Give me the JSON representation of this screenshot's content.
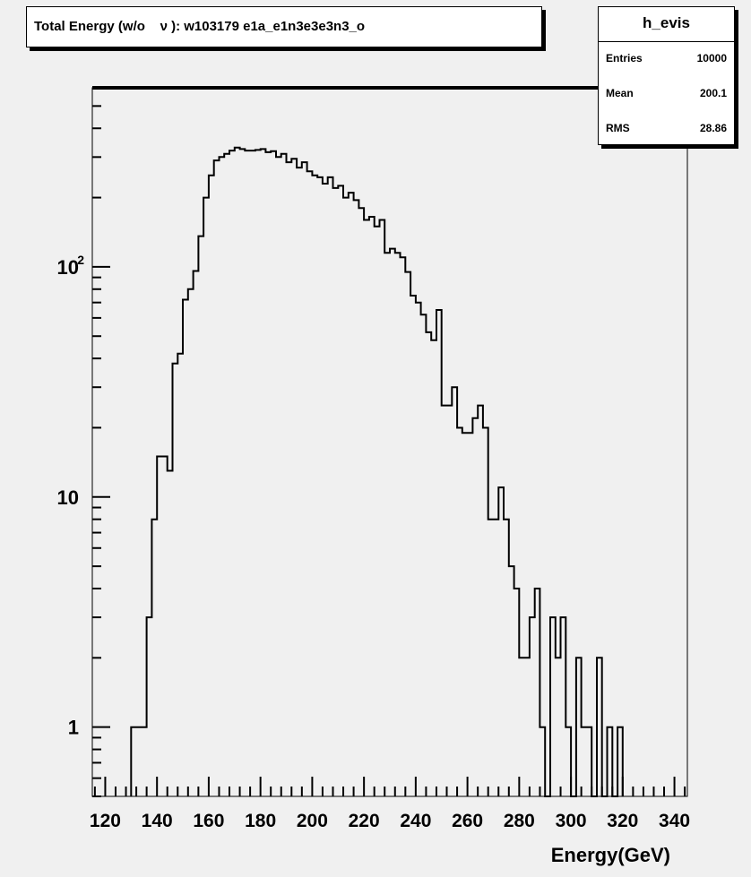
{
  "header": {
    "title": "Total Energy (w/o    ν ): w103179 e1a_e1n3e3e3n3_o"
  },
  "stats": {
    "name": "h_evis",
    "rows": [
      {
        "label": "Entries",
        "value": "10000"
      },
      {
        "label": "Mean",
        "value": "200.1"
      },
      {
        "label": "RMS",
        "value": "28.86"
      }
    ]
  },
  "chart_data": {
    "type": "bar",
    "title": "Total Energy (w/o    ν ): w103179 e1a_e1n3e3e3n3_o",
    "xlabel": "Energy(GeV)",
    "ylabel": "",
    "xlim": [
      115,
      345
    ],
    "ylim": [
      0.5,
      600
    ],
    "y_scale": "log",
    "bin_width": 2,
    "x_ticks": [
      120,
      140,
      160,
      180,
      200,
      220,
      240,
      260,
      280,
      300,
      320,
      340
    ],
    "x_tick_labels": [
      "120",
      "140",
      "160",
      "180",
      "200",
      "220",
      "240",
      "260",
      "280",
      "300",
      "320",
      "340"
    ],
    "y_ticks": [
      1,
      10,
      100
    ],
    "y_tick_labels": [
      "1",
      "10",
      "10²"
    ],
    "bins": [
      {
        "x": 130,
        "y": 1
      },
      {
        "x": 132,
        "y": 1
      },
      {
        "x": 134,
        "y": 1
      },
      {
        "x": 136,
        "y": 3
      },
      {
        "x": 138,
        "y": 8
      },
      {
        "x": 140,
        "y": 15
      },
      {
        "x": 142,
        "y": 15
      },
      {
        "x": 144,
        "y": 13
      },
      {
        "x": 146,
        "y": 38
      },
      {
        "x": 148,
        "y": 42
      },
      {
        "x": 150,
        "y": 72
      },
      {
        "x": 152,
        "y": 80
      },
      {
        "x": 154,
        "y": 96
      },
      {
        "x": 156,
        "y": 136
      },
      {
        "x": 158,
        "y": 200
      },
      {
        "x": 160,
        "y": 250
      },
      {
        "x": 162,
        "y": 290
      },
      {
        "x": 164,
        "y": 300
      },
      {
        "x": 166,
        "y": 310
      },
      {
        "x": 168,
        "y": 320
      },
      {
        "x": 170,
        "y": 330
      },
      {
        "x": 172,
        "y": 325
      },
      {
        "x": 174,
        "y": 320
      },
      {
        "x": 176,
        "y": 320
      },
      {
        "x": 178,
        "y": 322
      },
      {
        "x": 180,
        "y": 325
      },
      {
        "x": 182,
        "y": 315
      },
      {
        "x": 184,
        "y": 318
      },
      {
        "x": 186,
        "y": 300
      },
      {
        "x": 188,
        "y": 310
      },
      {
        "x": 190,
        "y": 285
      },
      {
        "x": 192,
        "y": 295
      },
      {
        "x": 194,
        "y": 270
      },
      {
        "x": 196,
        "y": 285
      },
      {
        "x": 198,
        "y": 260
      },
      {
        "x": 200,
        "y": 250
      },
      {
        "x": 202,
        "y": 245
      },
      {
        "x": 204,
        "y": 230
      },
      {
        "x": 206,
        "y": 245
      },
      {
        "x": 208,
        "y": 220
      },
      {
        "x": 210,
        "y": 225
      },
      {
        "x": 212,
        "y": 200
      },
      {
        "x": 214,
        "y": 210
      },
      {
        "x": 216,
        "y": 195
      },
      {
        "x": 218,
        "y": 180
      },
      {
        "x": 220,
        "y": 160
      },
      {
        "x": 222,
        "y": 165
      },
      {
        "x": 224,
        "y": 150
      },
      {
        "x": 226,
        "y": 160
      },
      {
        "x": 228,
        "y": 115
      },
      {
        "x": 230,
        "y": 120
      },
      {
        "x": 232,
        "y": 115
      },
      {
        "x": 234,
        "y": 110
      },
      {
        "x": 236,
        "y": 95
      },
      {
        "x": 238,
        "y": 75
      },
      {
        "x": 240,
        "y": 70
      },
      {
        "x": 242,
        "y": 62
      },
      {
        "x": 244,
        "y": 52
      },
      {
        "x": 246,
        "y": 48
      },
      {
        "x": 248,
        "y": 65
      },
      {
        "x": 250,
        "y": 25
      },
      {
        "x": 252,
        "y": 25
      },
      {
        "x": 254,
        "y": 30
      },
      {
        "x": 256,
        "y": 20
      },
      {
        "x": 258,
        "y": 19
      },
      {
        "x": 260,
        "y": 19
      },
      {
        "x": 262,
        "y": 22
      },
      {
        "x": 264,
        "y": 25
      },
      {
        "x": 266,
        "y": 20
      },
      {
        "x": 268,
        "y": 8
      },
      {
        "x": 270,
        "y": 8
      },
      {
        "x": 272,
        "y": 11
      },
      {
        "x": 274,
        "y": 8
      },
      {
        "x": 276,
        "y": 5
      },
      {
        "x": 278,
        "y": 4
      },
      {
        "x": 280,
        "y": 2
      },
      {
        "x": 282,
        "y": 2
      },
      {
        "x": 284,
        "y": 3
      },
      {
        "x": 286,
        "y": 4
      },
      {
        "x": 288,
        "y": 1
      },
      {
        "x": 290,
        "y": 0
      },
      {
        "x": 292,
        "y": 3
      },
      {
        "x": 294,
        "y": 2
      },
      {
        "x": 296,
        "y": 3
      },
      {
        "x": 298,
        "y": 1
      },
      {
        "x": 300,
        "y": 0
      },
      {
        "x": 302,
        "y": 2
      },
      {
        "x": 304,
        "y": 1
      },
      {
        "x": 306,
        "y": 1
      },
      {
        "x": 308,
        "y": 0
      },
      {
        "x": 310,
        "y": 2
      },
      {
        "x": 312,
        "y": 0
      },
      {
        "x": 314,
        "y": 1
      },
      {
        "x": 316,
        "y": 0
      },
      {
        "x": 318,
        "y": 1
      }
    ]
  }
}
